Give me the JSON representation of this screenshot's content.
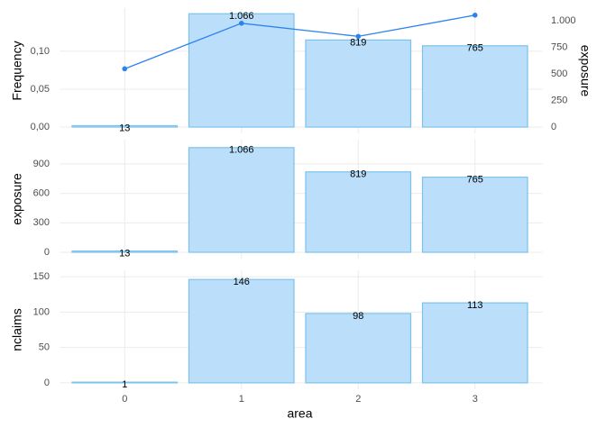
{
  "chart_data": [
    {
      "type": "combo",
      "ylabel": "Frequency",
      "y2label": "exposure",
      "categories": [
        "0",
        "1",
        "2",
        "3"
      ],
      "series": [
        {
          "type": "bar",
          "axis": "y2",
          "color": "#bbdefb",
          "values": [
            13,
            1066,
            819,
            765
          ],
          "value_labels": [
            "13",
            "1.066",
            "819",
            "765"
          ]
        },
        {
          "type": "line",
          "color": "#2b83f0",
          "values": [
            0.0769,
            0.137,
            0.1197,
            0.1477
          ]
        }
      ],
      "ylim": [
        -0.0083,
        0.157
      ],
      "yticks": [
        {
          "value": 0,
          "label": "0,00"
        },
        {
          "value": 0.05,
          "label": "0,05"
        },
        {
          "value": 0.1,
          "label": "0,10"
        }
      ],
      "y2lim": [
        -59,
        1119
      ],
      "y2ticks": [
        0,
        250,
        500,
        750,
        {
          "value": 1000,
          "label": "1.000"
        }
      ],
      "grid": true
    },
    {
      "type": "bar",
      "ylabel": "exposure",
      "categories": [
        "0",
        "1",
        "2",
        "3"
      ],
      "series": [
        {
          "color": "#bbdefb",
          "values": [
            13,
            1066,
            819,
            765
          ],
          "value_labels": [
            "13",
            "1.066",
            "819",
            "765"
          ]
        }
      ],
      "ylim": [
        -64,
        1147
      ],
      "yticks": [
        0,
        300,
        600,
        900
      ],
      "grid": true
    },
    {
      "type": "bar",
      "ylabel": "nclaims",
      "xlabel": "area",
      "categories": [
        "0",
        "1",
        "2",
        "3"
      ],
      "series": [
        {
          "color": "#bbdefb",
          "values": [
            1,
            146,
            98,
            113
          ]
        }
      ],
      "ylim": [
        -9,
        159
      ],
      "yticks": [
        0,
        50,
        100,
        150
      ],
      "grid": true
    }
  ]
}
